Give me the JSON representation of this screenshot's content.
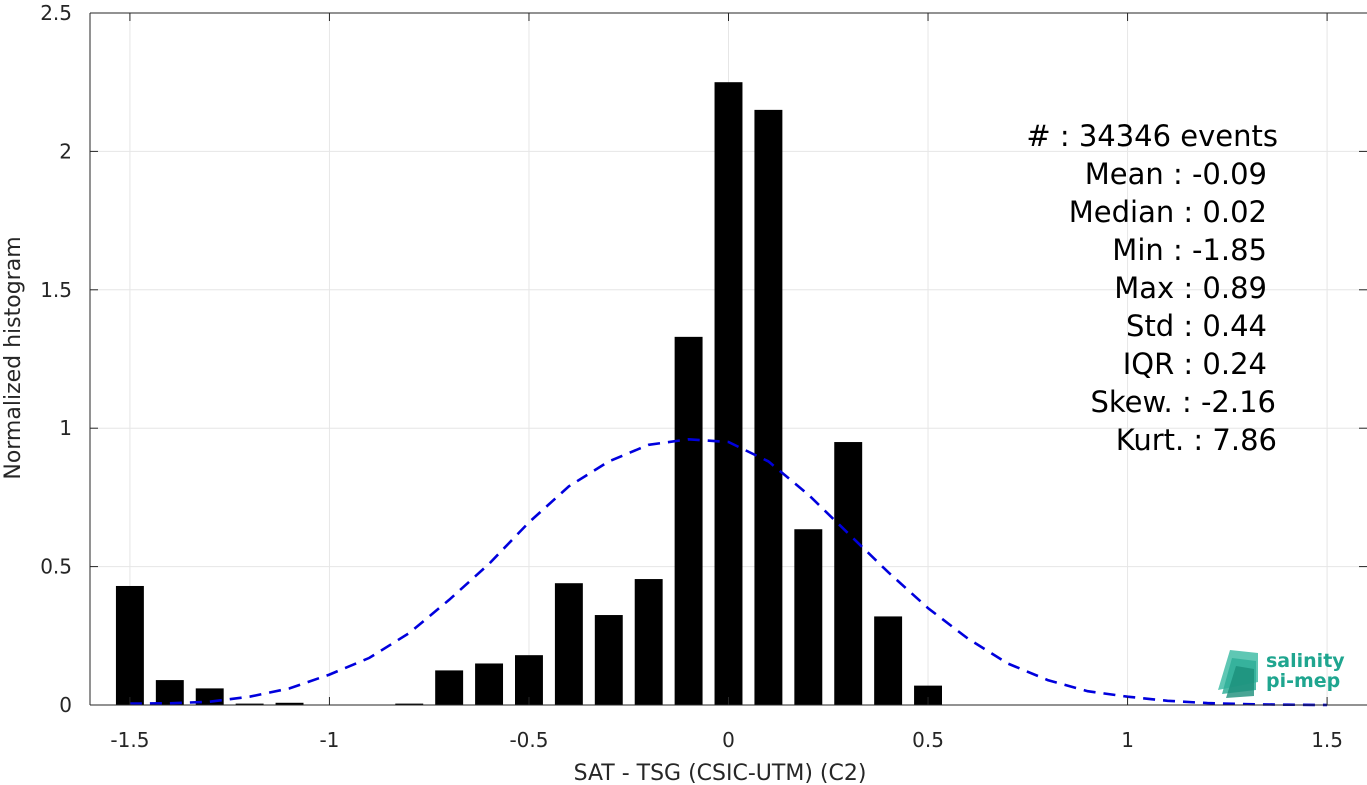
{
  "chart_data": {
    "type": "bar",
    "xlabel": "SAT - TSG (CSIC-UTM) (C2)",
    "ylabel": "Normalized histogram",
    "xlim": [
      -1.6,
      1.6
    ],
    "ylim": [
      0,
      2.5
    ],
    "xticks": [
      -1.5,
      -1,
      -0.5,
      0,
      0.5,
      1,
      1.5
    ],
    "xtick_labels": [
      "-1.5",
      "-1",
      "-0.5",
      "0",
      "0.5",
      "1",
      "1.5"
    ],
    "yticks": [
      0,
      0.5,
      1,
      1.5,
      2,
      2.5
    ],
    "ytick_labels": [
      "0",
      "0.5",
      "1",
      "1.5",
      "2",
      "2.5"
    ],
    "grid": true,
    "bar_width": 0.07,
    "bar_color": "#000000",
    "bars": [
      {
        "x": -1.5,
        "value": 0.43
      },
      {
        "x": -1.4,
        "value": 0.09
      },
      {
        "x": -1.3,
        "value": 0.06
      },
      {
        "x": -1.2,
        "value": 0.005
      },
      {
        "x": -1.1,
        "value": 0.008
      },
      {
        "x": -0.8,
        "value": 0.005
      },
      {
        "x": -0.7,
        "value": 0.125
      },
      {
        "x": -0.6,
        "value": 0.15
      },
      {
        "x": -0.5,
        "value": 0.18
      },
      {
        "x": -0.4,
        "value": 0.44
      },
      {
        "x": -0.3,
        "value": 0.325
      },
      {
        "x": -0.2,
        "value": 0.455
      },
      {
        "x": -0.1,
        "value": 1.33
      },
      {
        "x": 0.0,
        "value": 2.25
      },
      {
        "x": 0.1,
        "value": 2.15
      },
      {
        "x": 0.2,
        "value": 0.635
      },
      {
        "x": 0.3,
        "value": 0.95
      },
      {
        "x": 0.4,
        "value": 0.32
      },
      {
        "x": 0.5,
        "value": 0.07
      }
    ],
    "fit_curve": {
      "style": "dashed",
      "color": "#0000dd",
      "x": [
        -1.5,
        -1.4,
        -1.3,
        -1.2,
        -1.1,
        -1.0,
        -0.9,
        -0.8,
        -0.7,
        -0.6,
        -0.5,
        -0.4,
        -0.3,
        -0.2,
        -0.1,
        0.0,
        0.1,
        0.2,
        0.3,
        0.4,
        0.5,
        0.6,
        0.7,
        0.8,
        0.9,
        1.0,
        1.1,
        1.2,
        1.3,
        1.4,
        1.5
      ],
      "y": [
        0.005,
        0.006,
        0.012,
        0.03,
        0.06,
        0.11,
        0.17,
        0.26,
        0.38,
        0.51,
        0.66,
        0.79,
        0.88,
        0.94,
        0.96,
        0.95,
        0.88,
        0.76,
        0.62,
        0.48,
        0.35,
        0.24,
        0.15,
        0.09,
        0.05,
        0.03,
        0.015,
        0.007,
        0.003,
        0.001,
        0.0
      ]
    },
    "stats": [
      {
        "label": "#  : 34346 events"
      },
      {
        "label": "Mean : -0.09"
      },
      {
        "label": "Median : 0.02"
      },
      {
        "label": "Min : -1.85"
      },
      {
        "label": "Max : 0.89"
      },
      {
        "label": "Std : 0.44"
      },
      {
        "label": "IQR : 0.24"
      },
      {
        "label": "Skew. : -2.16"
      },
      {
        "label": "Kurt. : 7.86"
      }
    ]
  },
  "logo": {
    "line1": "salinity",
    "line2": "pi-mep"
  }
}
